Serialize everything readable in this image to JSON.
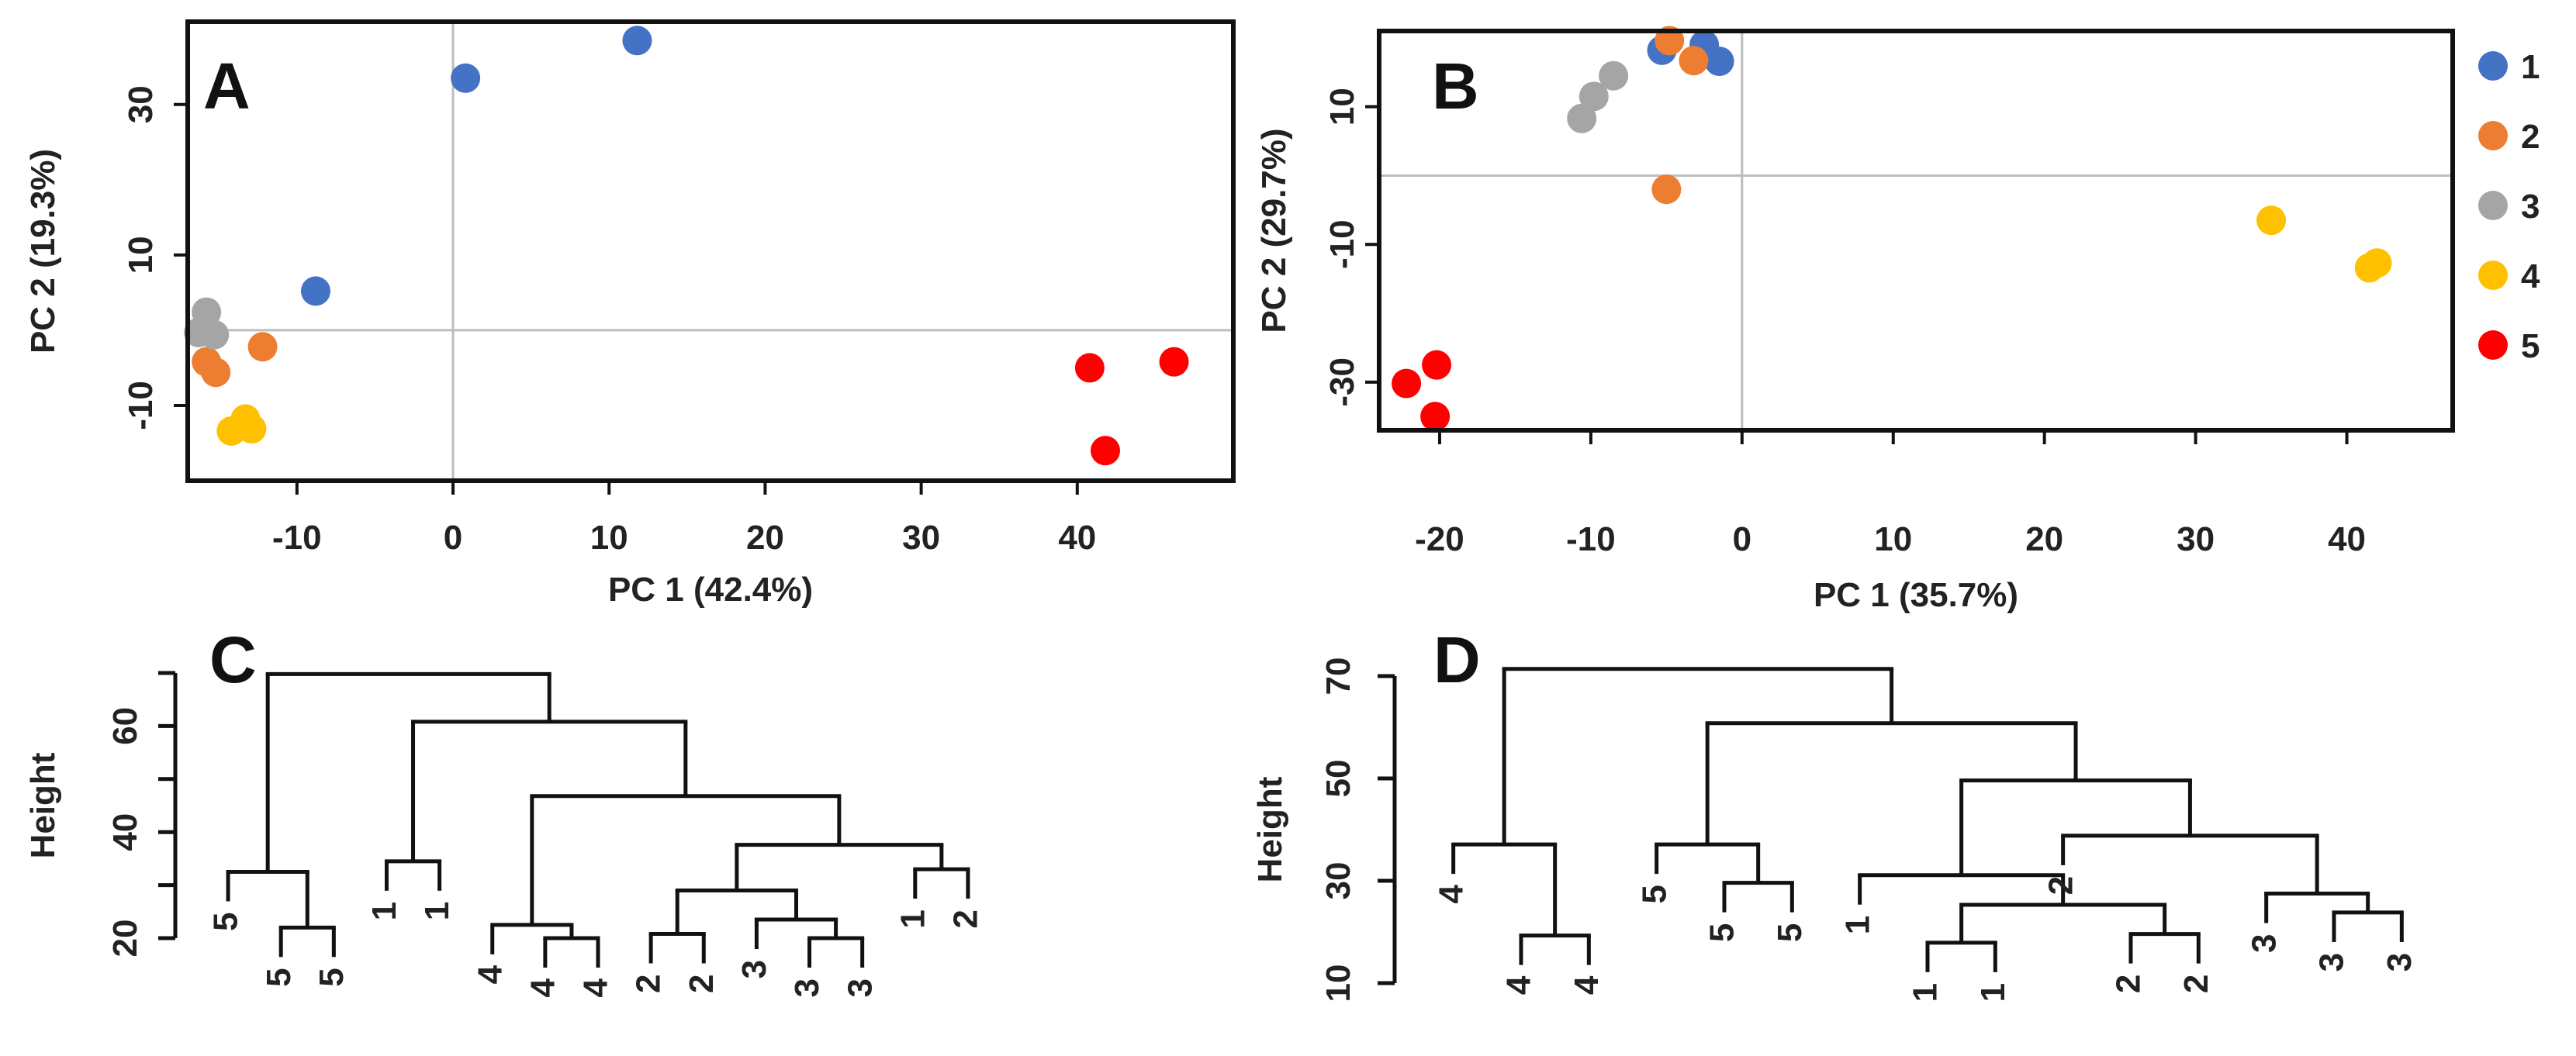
{
  "chart_data": [
    {
      "panel": "A",
      "type": "scatter",
      "xlabel": "PC 1 (42.4%)",
      "ylabel": "PC 2 (19.3%)",
      "xlim": [
        -17,
        50
      ],
      "ylim": [
        -20,
        41
      ],
      "xticks": [
        -10,
        0,
        10,
        20,
        30,
        40
      ],
      "yticks": [
        -10,
        10,
        30
      ],
      "reference_lines": {
        "x": 0,
        "y": 0
      },
      "series": [
        {
          "name": "1",
          "color": "#4472C4",
          "points": [
            [
              0.8,
              33.5
            ],
            [
              11.8,
              38.5
            ],
            [
              -8.8,
              5.2
            ]
          ]
        },
        {
          "name": "2",
          "color": "#ED7D31",
          "points": [
            [
              -12.2,
              -2.2
            ],
            [
              -15.8,
              -4.2
            ],
            [
              -15.2,
              -5.6
            ]
          ]
        },
        {
          "name": "3",
          "color": "#A5A5A5",
          "points": [
            [
              -15.8,
              2.4
            ],
            [
              -16.3,
              -0.3
            ],
            [
              -15.3,
              -0.6
            ]
          ]
        },
        {
          "name": "4",
          "color": "#FFC000",
          "points": [
            [
              -13.3,
              -11.8
            ],
            [
              -14.2,
              -13.4
            ],
            [
              -12.9,
              -13.1
            ]
          ]
        },
        {
          "name": "5",
          "color": "#FF0000",
          "points": [
            [
              40.8,
              -5.0
            ],
            [
              46.2,
              -4.2
            ],
            [
              41.8,
              -16.0
            ]
          ]
        }
      ]
    },
    {
      "panel": "B",
      "type": "scatter",
      "xlabel": "PC 1 (35.7%)",
      "ylabel": "PC 2 (29.7%)",
      "xlim": [
        -24,
        47
      ],
      "ylim": [
        -37,
        21
      ],
      "xticks": [
        -20,
        -10,
        0,
        10,
        20,
        30,
        40
      ],
      "yticks": [
        -30,
        -10,
        10
      ],
      "reference_lines": {
        "x": 0,
        "y": 0
      },
      "series": [
        {
          "name": "1",
          "color": "#4472C4",
          "points": [
            [
              -5.3,
              18.2
            ],
            [
              -2.5,
              19.0
            ],
            [
              -1.5,
              16.6
            ]
          ]
        },
        {
          "name": "2",
          "color": "#ED7D31",
          "points": [
            [
              -4.8,
              19.6
            ],
            [
              -3.2,
              16.7
            ],
            [
              -5.0,
              -2.0
            ]
          ]
        },
        {
          "name": "3",
          "color": "#A5A5A5",
          "points": [
            [
              -8.5,
              14.5
            ],
            [
              -9.8,
              11.5
            ],
            [
              -10.6,
              8.3
            ]
          ]
        },
        {
          "name": "4",
          "color": "#FFC000",
          "points": [
            [
              35.0,
              -6.5
            ],
            [
              41.5,
              -13.4
            ],
            [
              42.0,
              -12.7
            ]
          ]
        },
        {
          "name": "5",
          "color": "#FF0000",
          "points": [
            [
              -20.2,
              -27.5
            ],
            [
              -22.2,
              -30.2
            ],
            [
              -20.3,
              -35.0
            ]
          ]
        }
      ]
    },
    {
      "panel": "C",
      "type": "dendrogram",
      "ylabel": "Height",
      "ylim": [
        20,
        70
      ],
      "yticks": [
        20,
        40,
        60
      ],
      "leaves": [
        "5",
        "5",
        "5",
        "1",
        "1",
        "4",
        "4",
        "4",
        "2",
        "2",
        "3",
        "3",
        "3",
        "1",
        "2"
      ],
      "merges": [
        [
          1,
          2,
          22
        ],
        [
          0,
          -1,
          32.5
        ],
        [
          3,
          4,
          34.5
        ],
        [
          6,
          7,
          20
        ],
        [
          5,
          -4,
          22.5
        ],
        [
          8,
          9,
          20.8
        ],
        [
          11,
          12,
          20
        ],
        [
          10,
          -7,
          23.5
        ],
        [
          -6,
          -8,
          29
        ],
        [
          13,
          14,
          33
        ],
        [
          -9,
          -10,
          37.6
        ],
        [
          -5,
          -11,
          46.8
        ],
        [
          -3,
          -12,
          60.8
        ],
        [
          -2,
          -13,
          69.8
        ]
      ]
    },
    {
      "panel": "D",
      "type": "dendrogram",
      "ylabel": "Height",
      "ylim": [
        10,
        70
      ],
      "yticks": [
        10,
        30,
        50,
        70
      ],
      "leaves": [
        "4",
        "4",
        "4",
        "5",
        "5",
        "5",
        "1",
        "1",
        "1",
        "2",
        "2",
        "2",
        "3",
        "3",
        "3"
      ],
      "merges": [
        [
          1,
          2,
          19.3
        ],
        [
          0,
          -1,
          37.1
        ],
        [
          4,
          5,
          29.6
        ],
        [
          3,
          -3,
          37.1
        ],
        [
          7,
          8,
          17.9
        ],
        [
          10,
          11,
          19.6
        ],
        [
          -5,
          -6,
          25.3
        ],
        [
          6,
          -7,
          31.1
        ],
        [
          13,
          14,
          23.8
        ],
        [
          12,
          -9,
          27.5
        ],
        [
          9,
          -10,
          38.8
        ],
        [
          -8,
          -11,
          49.6
        ],
        [
          -4,
          -12,
          60.8
        ],
        [
          -2,
          -13,
          71.4
        ]
      ]
    }
  ],
  "legend": {
    "placement": "right",
    "items": [
      {
        "label": "1",
        "color": "#4472C4"
      },
      {
        "label": "2",
        "color": "#ED7D31"
      },
      {
        "label": "3",
        "color": "#A5A5A5"
      },
      {
        "label": "4",
        "color": "#FFC000"
      },
      {
        "label": "5",
        "color": "#FF0000"
      }
    ]
  },
  "panel_letters": [
    "A",
    "B",
    "C",
    "D"
  ]
}
